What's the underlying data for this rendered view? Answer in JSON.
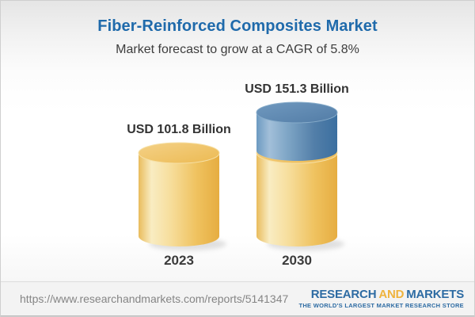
{
  "header": {
    "title": "Fiber-Reinforced Composites Market",
    "subtitle": "Market forecast to grow at a CAGR of 5.8%"
  },
  "chart_data": {
    "type": "bar",
    "variant": "3d-cylinder",
    "categories": [
      "2023",
      "2030"
    ],
    "values": [
      101.8,
      151.3
    ],
    "value_labels": [
      "USD 101.8 Billion",
      "USD 151.3 Billion"
    ],
    "unit": "USD Billion",
    "cagr_pct": 5.8,
    "stack": {
      "note_bar": "2030",
      "base_value": 101.8,
      "growth_value": 49.5,
      "base_color": "#f0c566",
      "growth_color": "#6f9dc3"
    },
    "colors": {
      "yellow": "#f0c566",
      "yellow_highlight": "#f9ecc2",
      "yellow_dark": "#e6ad41",
      "blue": "#6f9dc3",
      "blue_highlight": "#a2bfd9",
      "blue_dark": "#3b6fa0",
      "label_text": "#333333"
    }
  },
  "footer": {
    "url": "https://www.researchandmarkets.com/reports/5141347",
    "logo": {
      "word1": "RESEARCH",
      "word2": "AND",
      "word3": "MARKETS",
      "tagline": "THE WORLD'S LARGEST MARKET RESEARCH STORE",
      "brand_blue": "#2d6ba3",
      "brand_gold": "#efb33d"
    }
  },
  "theme": {
    "title_color": "#1f6aab",
    "subtitle_color": "#3d3d3d"
  }
}
